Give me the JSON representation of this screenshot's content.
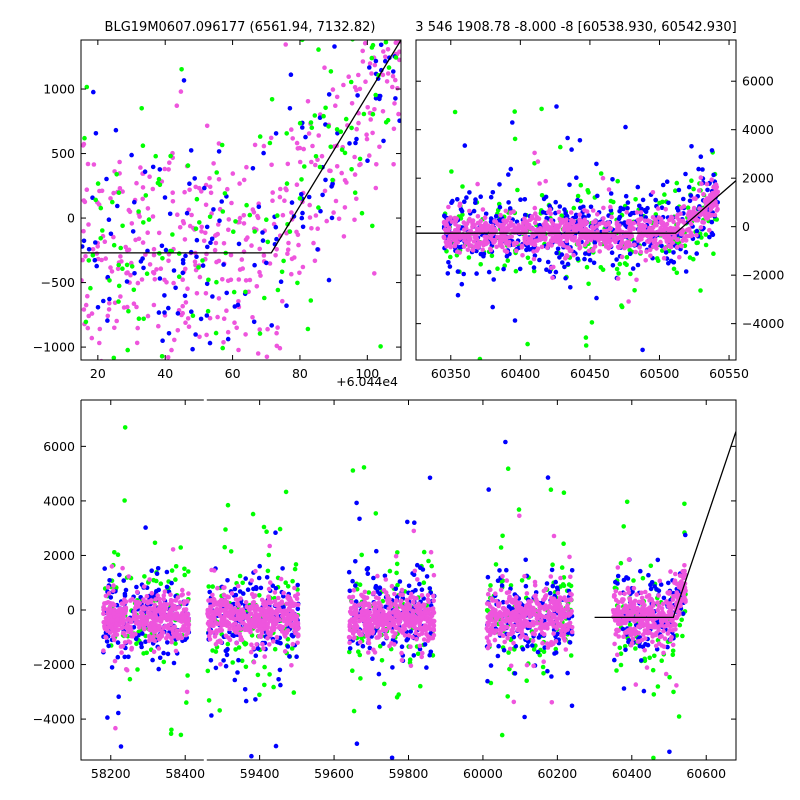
{
  "figure": {
    "series_colors": {
      "green": "#00ff00",
      "blue": "#0000ff",
      "magenta": "#ee55dd"
    },
    "line_color": "#000000"
  },
  "chart_data": [
    {
      "id": "zoom",
      "type": "scatter",
      "title": "BLG19M0607.096177 (6561.94, 7132.82)",
      "x_offset_label": "+6.044e4",
      "xlim": [
        15,
        110
      ],
      "ylim": [
        -1100,
        1380
      ],
      "xticks": [
        20,
        40,
        60,
        80,
        100
      ],
      "xtick_labels": [
        "20",
        "40",
        "60",
        "80",
        "100"
      ],
      "yticks": [
        -1000,
        -500,
        0,
        500,
        1000
      ],
      "ytick_labels": [
        "−1000",
        "−500",
        "0",
        "500",
        "1000"
      ],
      "yaxis_side": "left",
      "model_line": [
        [
          15,
          -270
        ],
        [
          71.5,
          -270
        ],
        [
          110,
          1380
        ]
      ],
      "clusters": [
        {
          "x": [
            16,
            25
          ],
          "y": -100,
          "sd": 350,
          "w": 1
        }
      ],
      "series": [
        {
          "name": "magenta",
          "n": 430,
          "ranges": [
            [
              15,
              110
            ]
          ],
          "sd": 420,
          "follow_model": true,
          "outlier_frac": 0.05
        },
        {
          "name": "blue",
          "n": 160,
          "ranges": [
            [
              15,
              110
            ]
          ],
          "sd": 420,
          "follow_model": true,
          "outlier_frac": 0.08
        },
        {
          "name": "green",
          "n": 150,
          "ranges": [
            [
              15,
              110
            ]
          ],
          "sd": 450,
          "follow_model": true,
          "outlier_frac": 0.08
        }
      ]
    },
    {
      "id": "season",
      "type": "scatter",
      "title": "3 546 1908.78 -8.000 -8 [60538.930, 60542.930]",
      "xlim": [
        60325,
        60555
      ],
      "ylim": [
        -5500,
        7700
      ],
      "xticks": [
        60350,
        60400,
        60450,
        60500,
        60550
      ],
      "xtick_labels": [
        "60350",
        "60400",
        "60450",
        "60500",
        "60550"
      ],
      "yticks": [
        -4000,
        -2000,
        0,
        2000,
        4000,
        6000
      ],
      "ytick_labels": [
        "−4000",
        "−2000",
        "0",
        "2000",
        "4000",
        "6000"
      ],
      "yaxis_side": "right",
      "model_line": [
        [
          60325,
          -270
        ],
        [
          60511.5,
          -270
        ],
        [
          60555,
          1900
        ]
      ],
      "series": [
        {
          "name": "green",
          "n": 260,
          "ranges": [
            [
              60345,
              60542
            ]
          ],
          "sd": 900,
          "follow_model": true,
          "outlier_frac": 0.12
        },
        {
          "name": "blue",
          "n": 460,
          "ranges": [
            [
              60345,
              60542
            ]
          ],
          "sd": 800,
          "follow_model": true,
          "outlier_frac": 0.1
        },
        {
          "name": "magenta",
          "n": 900,
          "ranges": [
            [
              60345,
              60542
            ]
          ],
          "sd": 380,
          "follow_model": true,
          "outlier_frac": 0.06
        }
      ]
    },
    {
      "id": "full",
      "type": "scatter",
      "title": "",
      "xlim": [
        58120,
        60680
      ],
      "ylim": [
        -5500,
        7700
      ],
      "x_break": {
        "from": 58450,
        "to": 59250,
        "at": 58530
      },
      "xticks": [
        58200,
        58400,
        59400,
        59600,
        59800,
        60000,
        60200,
        60400,
        60600
      ],
      "xtick_labels": [
        "58200",
        "58400",
        "59400",
        "59600",
        "59800",
        "60000",
        "60200",
        "60400",
        "60600"
      ],
      "yticks": [
        -4000,
        -2000,
        0,
        2000,
        4000,
        6000
      ],
      "ytick_labels": [
        "−4000",
        "−2000",
        "0",
        "2000",
        "4000",
        "6000"
      ],
      "yaxis_side": "left",
      "model_line": [
        [
          60300,
          -270
        ],
        [
          60511.5,
          -270
        ],
        [
          60680,
          6550
        ]
      ],
      "series": [
        {
          "name": "green",
          "n": 520,
          "ranges": [
            [
              58180,
              58410
            ],
            [
              59260,
              59505
            ],
            [
              59640,
              59870
            ],
            [
              60010,
              60240
            ],
            [
              60350,
              60545
            ]
          ],
          "sd": 1000,
          "follow_model": true,
          "outlier_frac": 0.18
        },
        {
          "name": "blue",
          "n": 760,
          "ranges": [
            [
              58180,
              58410
            ],
            [
              59260,
              59505
            ],
            [
              59640,
              59870
            ],
            [
              60010,
              60240
            ],
            [
              60350,
              60545
            ]
          ],
          "sd": 850,
          "follow_model": true,
          "outlier_frac": 0.12
        },
        {
          "name": "magenta",
          "n": 2200,
          "ranges": [
            [
              58180,
              58410
            ],
            [
              59260,
              59505
            ],
            [
              59640,
              59870
            ],
            [
              60010,
              60240
            ],
            [
              60350,
              60545
            ]
          ],
          "sd": 420,
          "follow_model": true,
          "outlier_frac": 0.08
        }
      ]
    }
  ]
}
